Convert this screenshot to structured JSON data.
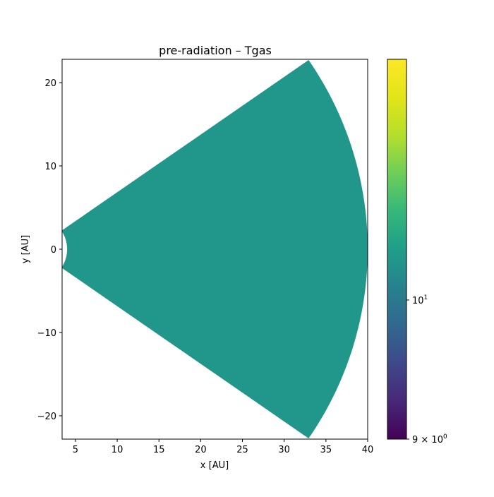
{
  "chart_data": {
    "type": "heatmap",
    "title": "pre-radiation – Tgas",
    "xlabel": "x [AU]",
    "ylabel": "y [AU]",
    "xlim": [
      3.4,
      40
    ],
    "ylim": [
      -22.8,
      22.8
    ],
    "x_ticks": [
      5,
      10,
      15,
      20,
      25,
      30,
      35,
      40
    ],
    "x_tick_labels": [
      "5",
      "10",
      "15",
      "20",
      "25",
      "30",
      "35",
      "40"
    ],
    "y_ticks": [
      -20,
      -10,
      0,
      10,
      20
    ],
    "y_tick_labels": [
      "−20",
      "−10",
      "0",
      "10",
      "20"
    ],
    "wedge": {
      "r_inner": 4.0,
      "r_outer": 40.0,
      "half_angle_deg": 34.6,
      "value": 10.4
    },
    "colorbar": {
      "cmap": "viridis",
      "scale": "log",
      "vmin": 9,
      "vmax": 12,
      "ticks": [
        {
          "value": 10,
          "label_base": "10",
          "label_exp": "1"
        },
        {
          "value": 9,
          "label_base": "9 × 10",
          "label_exp": "0"
        }
      ]
    },
    "colors": {
      "fill": "#21968b"
    }
  }
}
